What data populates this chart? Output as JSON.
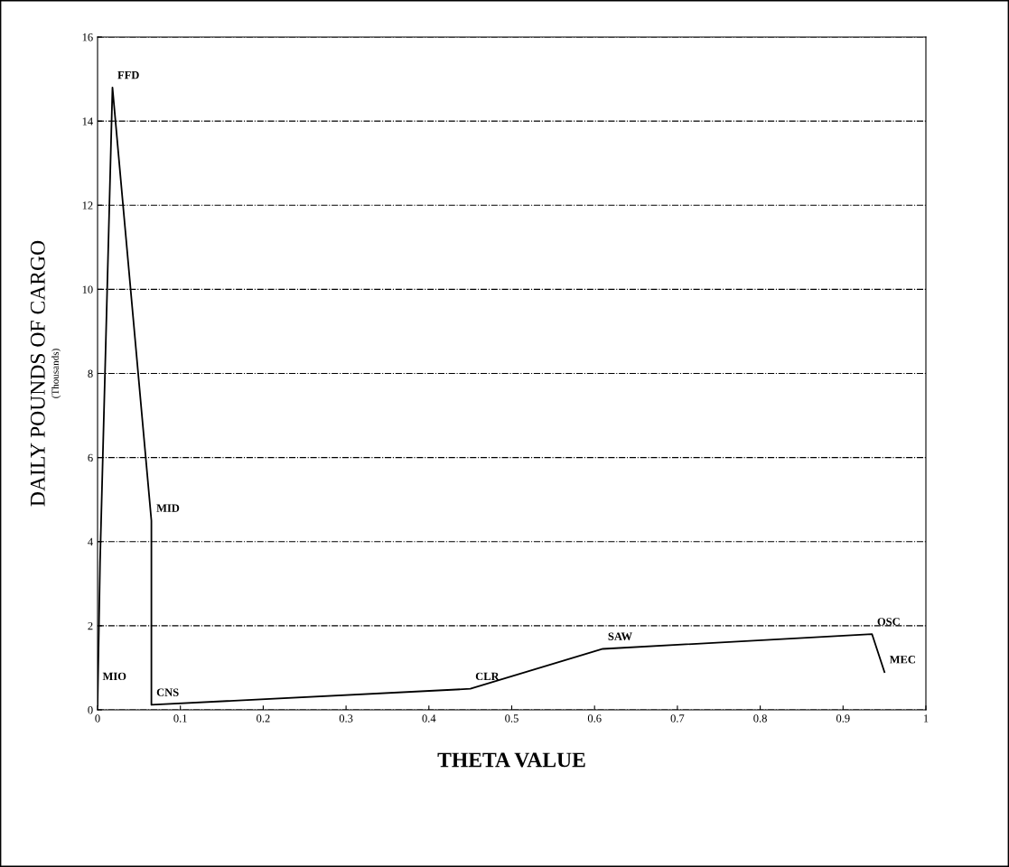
{
  "chart_data": {
    "type": "line",
    "xlabel": "THETA VALUE",
    "ylabel": "DAILY POUNDS OF CARGO",
    "annotations": [
      "(Thousands)",
      {
        "text": "MIO",
        "x": 0.0,
        "y": 0.5
      },
      {
        "text": "FFD",
        "x": 0.018,
        "y": 14.8
      },
      {
        "text": "MID",
        "x": 0.065,
        "y": 4.5
      },
      {
        "text": "CNS",
        "x": 0.065,
        "y": 0.12
      },
      {
        "text": "CLR",
        "x": 0.45,
        "y": 0.5
      },
      {
        "text": "SAW",
        "x": 0.61,
        "y": 1.45
      },
      {
        "text": "OSC",
        "x": 0.935,
        "y": 1.8
      },
      {
        "text": "MEC",
        "x": 0.95,
        "y": 0.9
      }
    ],
    "series": [
      {
        "color": "#000000",
        "x": [
          0.0,
          0.003,
          0.018,
          0.065,
          0.065,
          0.45,
          0.61,
          0.935,
          0.95
        ],
        "values": [
          0.1,
          3.5,
          14.8,
          4.5,
          0.12,
          0.5,
          1.45,
          1.8,
          0.9
        ]
      }
    ],
    "xlim": [
      0,
      1
    ],
    "ylim": [
      0,
      16
    ],
    "xticks": [
      0,
      0.1,
      0.2,
      0.3,
      0.4,
      0.5,
      0.6,
      0.7,
      0.8,
      0.9,
      1
    ],
    "yticks": [
      0,
      2,
      4,
      6,
      8,
      10,
      12,
      14,
      16
    ],
    "grid": "y",
    "marker": "none",
    "line_style": "solid"
  }
}
